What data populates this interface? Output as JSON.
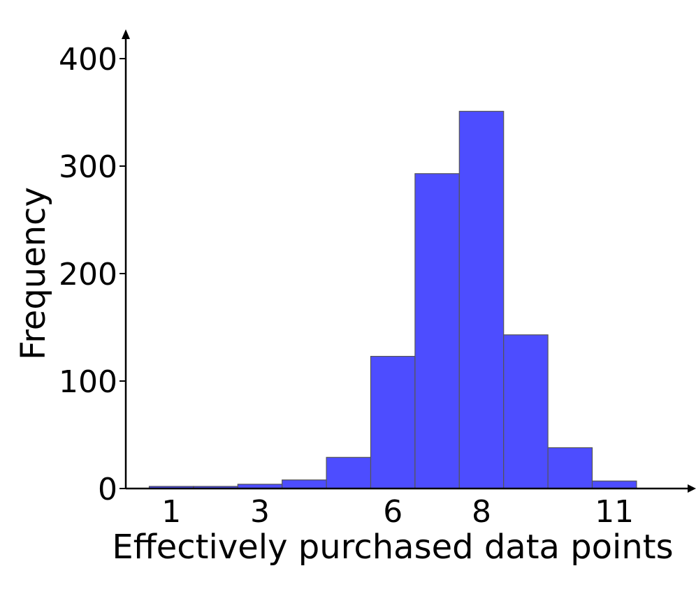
{
  "chart_data": {
    "type": "bar",
    "title": "",
    "xlabel": "Effectively purchased data points",
    "ylabel": "Frequency",
    "bar_color": "#4d4dff",
    "bar_edge_color": "#555555",
    "bins": [
      {
        "x": 1,
        "value": 2
      },
      {
        "x": 2,
        "value": 2
      },
      {
        "x": 3,
        "value": 4
      },
      {
        "x": 4,
        "value": 8
      },
      {
        "x": 5,
        "value": 29
      },
      {
        "x": 6,
        "value": 123
      },
      {
        "x": 7,
        "value": 293
      },
      {
        "x": 8,
        "value": 351
      },
      {
        "x": 9,
        "value": 143
      },
      {
        "x": 10,
        "value": 38
      },
      {
        "x": 11,
        "value": 7
      }
    ],
    "xticks": [
      {
        "value": 1,
        "label": "1"
      },
      {
        "value": 3,
        "label": "3"
      },
      {
        "value": 6,
        "label": "6"
      },
      {
        "value": 8,
        "label": "8"
      },
      {
        "value": 11,
        "label": "11"
      }
    ],
    "yticks": [
      {
        "value": 0,
        "label": "0"
      },
      {
        "value": 100,
        "label": "100"
      },
      {
        "value": 200,
        "label": "200"
      },
      {
        "value": 300,
        "label": "300"
      },
      {
        "value": 400,
        "label": "400"
      }
    ],
    "ylim": [
      0,
      400
    ],
    "grid": false,
    "legend": "none"
  }
}
